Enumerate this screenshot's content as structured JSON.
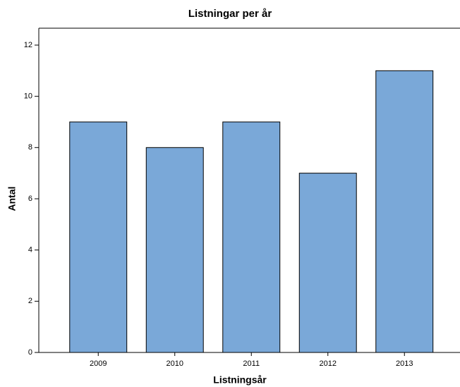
{
  "chart_data": {
    "type": "bar",
    "title": "Listningar per år",
    "x_label": "Listningsår",
    "y_label": "Antal",
    "categories": [
      "2009",
      "2010",
      "2011",
      "2012",
      "2013"
    ],
    "values": [
      9,
      8,
      9,
      7,
      11
    ],
    "color": "#7aa8d8",
    "ylim": [
      0,
      12.66
    ],
    "yticks": [
      0,
      2,
      4,
      6,
      8,
      10,
      12
    ],
    "grid": false
  }
}
